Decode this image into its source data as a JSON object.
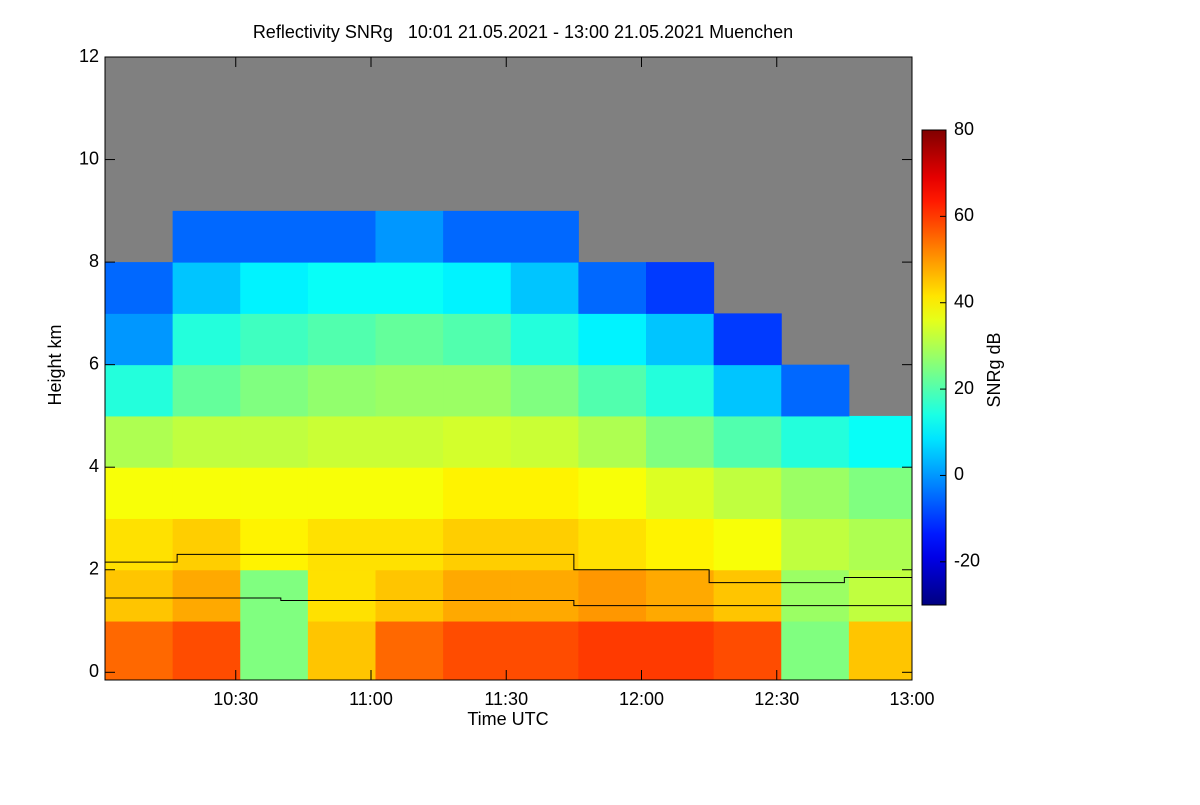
{
  "chart_data": {
    "type": "heatmap",
    "title": "Reflectivity SNRg   10:01 21.05.2021 - 13:00 21.05.2021 Muenchen",
    "xlabel": "Time UTC",
    "ylabel": "Height km",
    "colorbar_label": "SNRg dB",
    "colormap": "jet",
    "nodata_color": "#808080",
    "xlim": [
      601,
      780
    ],
    "xticks": [
      {
        "value": 630,
        "label": "10:30"
      },
      {
        "value": 660,
        "label": "11:00"
      },
      {
        "value": 690,
        "label": "11:30"
      },
      {
        "value": 720,
        "label": "12:00"
      },
      {
        "value": 750,
        "label": "12:30"
      },
      {
        "value": 780,
        "label": "13:00"
      }
    ],
    "ylim": [
      -0.15,
      12
    ],
    "yticks": [
      0,
      2,
      4,
      6,
      8,
      10,
      12
    ],
    "clim": [
      -30,
      80
    ],
    "cticks": [
      -20,
      0,
      20,
      40,
      60,
      80
    ],
    "x_edges": [
      601,
      616,
      631,
      646,
      661,
      676,
      691,
      706,
      721,
      736,
      751,
      766,
      780
    ],
    "y_edges": [
      -0.15,
      1,
      2,
      3,
      4,
      5,
      6,
      7,
      8,
      9,
      10,
      11,
      12
    ],
    "z": [
      [
        55,
        58,
        25,
        45,
        55,
        58,
        58,
        60,
        60,
        58,
        25,
        45
      ],
      [
        45,
        48,
        25,
        42,
        45,
        48,
        48,
        50,
        48,
        45,
        28,
        32
      ],
      [
        42,
        44,
        40,
        42,
        42,
        44,
        44,
        42,
        40,
        38,
        32,
        30
      ],
      [
        38,
        38,
        38,
        38,
        38,
        40,
        40,
        38,
        35,
        32,
        28,
        25
      ],
      [
        30,
        32,
        32,
        33,
        33,
        34,
        33,
        30,
        25,
        20,
        15,
        12
      ],
      [
        15,
        22,
        25,
        27,
        28,
        28,
        25,
        20,
        15,
        5,
        -5,
        null
      ],
      [
        0,
        15,
        18,
        20,
        22,
        20,
        15,
        10,
        5,
        -10,
        null,
        null
      ],
      [
        -5,
        5,
        10,
        12,
        12,
        10,
        5,
        -5,
        -10,
        null,
        null,
        null
      ],
      [
        null,
        -5,
        -5,
        -5,
        0,
        -5,
        -5,
        null,
        null,
        null,
        null,
        null
      ],
      [
        null,
        null,
        null,
        null,
        null,
        null,
        null,
        null,
        null,
        null,
        null,
        null
      ],
      [
        null,
        null,
        null,
        null,
        null,
        null,
        null,
        null,
        null,
        null,
        null,
        null
      ],
      [
        null,
        null,
        null,
        null,
        null,
        null,
        null,
        null,
        null,
        null,
        null,
        null
      ]
    ],
    "lines": [
      {
        "color": "#000000",
        "x": [
          601,
          617,
          617,
          705,
          705,
          735,
          735,
          765,
          765,
          780
        ],
        "values": [
          2.15,
          2.15,
          2.3,
          2.3,
          2.0,
          2.0,
          1.75,
          1.75,
          1.85,
          1.85
        ]
      },
      {
        "color": "#000000",
        "x": [
          601,
          640,
          640,
          705,
          705,
          780
        ],
        "values": [
          1.45,
          1.45,
          1.4,
          1.4,
          1.3,
          1.3
        ]
      }
    ]
  }
}
